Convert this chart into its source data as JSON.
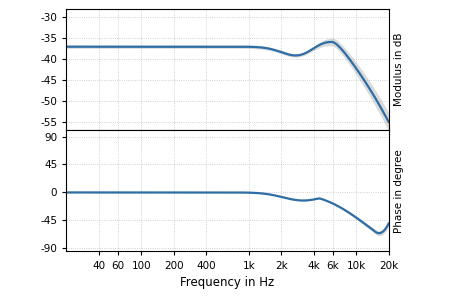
{
  "freq_min": 20,
  "freq_max": 20000,
  "modulus_ylim": [
    -57,
    -28
  ],
  "modulus_yticks": [
    -55,
    -50,
    -45,
    -40,
    -35,
    -30
  ],
  "phase_ylim": [
    -95,
    100
  ],
  "phase_yticks": [
    -90,
    -45,
    0,
    45,
    90
  ],
  "xtick_freqs": [
    40,
    60,
    100,
    200,
    400,
    1000,
    2000,
    4000,
    6000,
    10000,
    20000
  ],
  "xtick_labels": [
    "40",
    "60",
    "100",
    "200",
    "400",
    "1k",
    "2k",
    "4k",
    "6k",
    "10k",
    "20k"
  ],
  "xlabel": "Frequency in Hz",
  "ylabel_top": "Modulus in dB",
  "ylabel_bottom": "Phase in degree",
  "line_color": "#2c6ea5",
  "shade_color": "#b0b0b0",
  "shade_alpha": 0.45,
  "background_color": "#ffffff",
  "grid_color": "#999999",
  "grid_alpha": 0.6,
  "figsize": [
    4.74,
    3.03
  ],
  "dpi": 100
}
